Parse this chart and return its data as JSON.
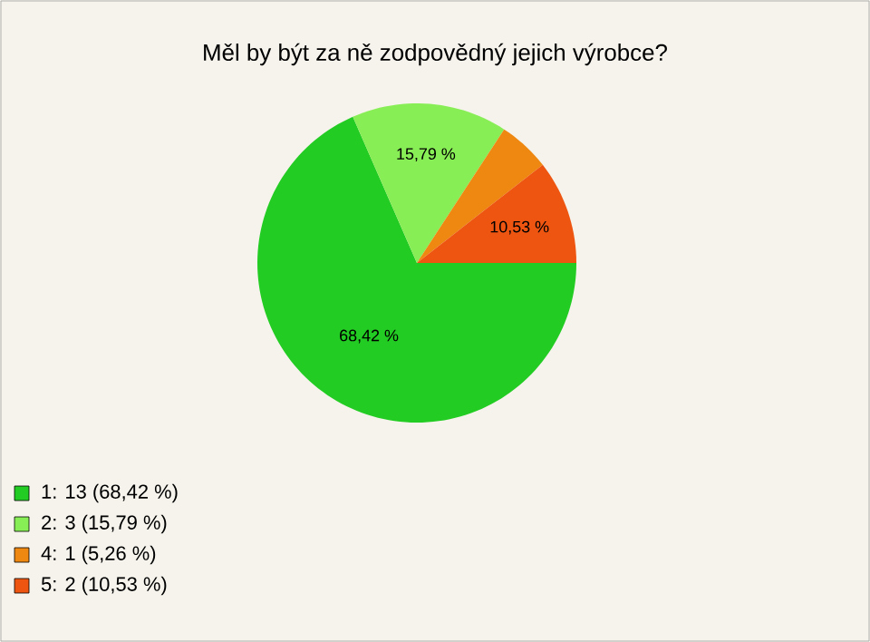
{
  "chart_data": {
    "type": "pie",
    "title": "Měl by být za ně zodpovědný jejich výrobce?",
    "categories": [
      "1: 13 (68,42 %)",
      "2: 3 (15,79 %)",
      "4: 1 (5,26 %)",
      "5: 2 (10,53 %)"
    ],
    "values": [
      68.42,
      15.79,
      5.26,
      10.53
    ],
    "colors": [
      "#22cc22",
      "#88ee55",
      "#ee8811",
      "#ee5511"
    ],
    "value_labels": [
      "68,42 %",
      "15,79 %",
      null,
      "10,53 %"
    ],
    "legend": "bottom left"
  }
}
